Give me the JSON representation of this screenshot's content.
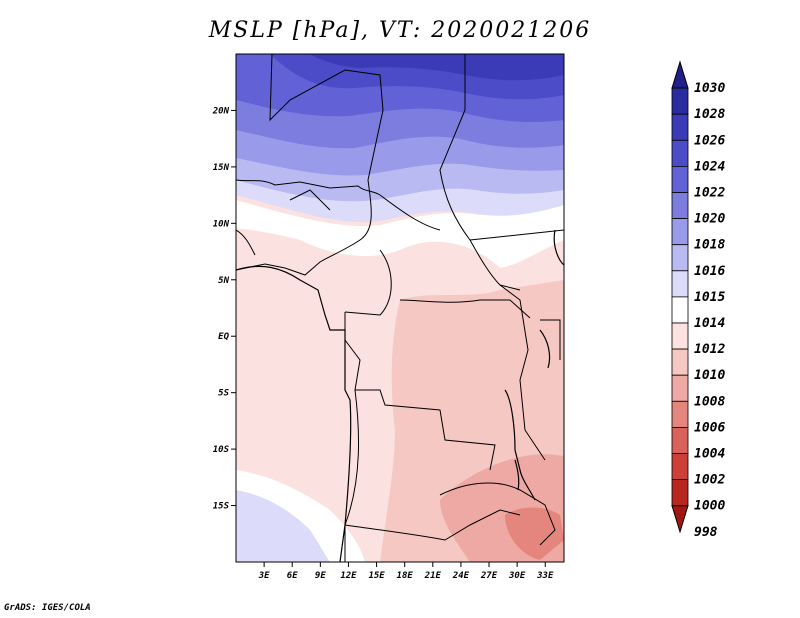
{
  "title": "MSLP [hPa], VT: 2020021206",
  "footer": "GrADS: IGES/COLA",
  "map": {
    "projection": "lat-lon",
    "lon_range": [
      0,
      35
    ],
    "lat_range": [
      -20,
      25
    ],
    "lon_ticks": [
      3,
      6,
      9,
      12,
      15,
      18,
      21,
      24,
      27,
      30,
      33
    ],
    "lon_tick_labels": [
      "3E",
      "6E",
      "9E",
      "12E",
      "15E",
      "18E",
      "21E",
      "24E",
      "27E",
      "30E",
      "33E"
    ],
    "lat_ticks": [
      20,
      15,
      10,
      5,
      0,
      -5,
      -10,
      -15
    ],
    "lat_tick_labels": [
      "20N",
      "15N",
      "10N",
      "5N",
      "EQ",
      "5S",
      "10S",
      "15S"
    ]
  },
  "colorbar": {
    "labels": [
      "1030",
      "1028",
      "1026",
      "1024",
      "1022",
      "1020",
      "1018",
      "1016",
      "1015",
      "1014",
      "1012",
      "1010",
      "1008",
      "1006",
      "1004",
      "1002",
      "1000",
      "998"
    ],
    "colors": [
      "#221e8a",
      "#2b2ba0",
      "#3b3bb8",
      "#4c4cc9",
      "#6262d6",
      "#7d7de0",
      "#9a9aea",
      "#babaf3",
      "#dcdcfa",
      "#ffffff",
      "#fbe1df",
      "#f5c8c4",
      "#eea9a4",
      "#e4857e",
      "#d9635b",
      "#cc4038",
      "#b82620",
      "#a01712"
    ]
  }
}
